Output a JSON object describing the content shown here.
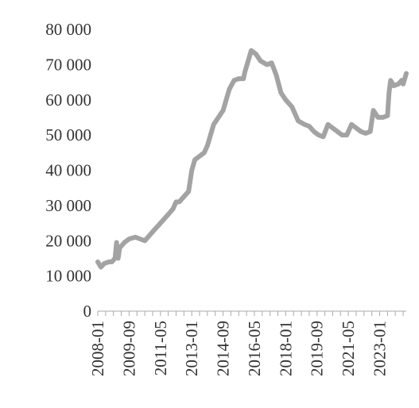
{
  "chart_data": {
    "type": "line",
    "title": "",
    "xlabel": "",
    "ylabel": "",
    "ylim": [
      0,
      80000
    ],
    "grid": false,
    "legend": "none",
    "x_start": "2008-01",
    "x_end": "2024-06",
    "yticks": [
      0,
      10000,
      20000,
      30000,
      40000,
      50000,
      60000,
      70000,
      80000
    ],
    "ytick_labels": [
      "0",
      "10 000",
      "20 000",
      "30 000",
      "40 000",
      "50 000",
      "60 000",
      "70 000",
      "80 000"
    ],
    "xtick_labels": [
      "2008-01",
      "2009-09",
      "2011-05",
      "2013-01",
      "2014-09",
      "2016-05",
      "2018-01",
      "2019-09",
      "2021-05",
      "2023-01"
    ],
    "series": [
      {
        "color": "#a3a3a3",
        "points": [
          [
            "2008-01",
            14000
          ],
          [
            "2008-03",
            12500
          ],
          [
            "2008-05",
            13500
          ],
          [
            "2008-08",
            14000
          ],
          [
            "2008-10",
            14000
          ],
          [
            "2008-12",
            15000
          ],
          [
            "2009-01",
            19500
          ],
          [
            "2009-02",
            15000
          ],
          [
            "2009-03",
            18000
          ],
          [
            "2009-06",
            19500
          ],
          [
            "2009-09",
            20500
          ],
          [
            "2010-01",
            21000
          ],
          [
            "2010-04",
            20500
          ],
          [
            "2010-07",
            20000
          ],
          [
            "2010-10",
            21500
          ],
          [
            "2011-01",
            23000
          ],
          [
            "2011-05",
            25000
          ],
          [
            "2011-09",
            27000
          ],
          [
            "2012-01",
            29000
          ],
          [
            "2012-03",
            31000
          ],
          [
            "2012-05",
            31000
          ],
          [
            "2012-08",
            32500
          ],
          [
            "2012-11",
            34000
          ],
          [
            "2013-01",
            40000
          ],
          [
            "2013-03",
            43000
          ],
          [
            "2013-06",
            44000
          ],
          [
            "2013-09",
            45000
          ],
          [
            "2013-11",
            47000
          ],
          [
            "2014-01",
            50000
          ],
          [
            "2014-03",
            53000
          ],
          [
            "2014-06",
            55000
          ],
          [
            "2014-09",
            57000
          ],
          [
            "2015-01",
            63000
          ],
          [
            "2015-04",
            65500
          ],
          [
            "2015-07",
            66000
          ],
          [
            "2015-10",
            66000
          ],
          [
            "2015-11",
            68000
          ],
          [
            "2016-01",
            71000
          ],
          [
            "2016-03",
            74000
          ],
          [
            "2016-06",
            73000
          ],
          [
            "2016-09",
            71000
          ],
          [
            "2017-01",
            70000
          ],
          [
            "2017-04",
            70500
          ],
          [
            "2017-07",
            67000
          ],
          [
            "2017-10",
            62000
          ],
          [
            "2018-01",
            60000
          ],
          [
            "2018-05",
            58000
          ],
          [
            "2018-09",
            54000
          ],
          [
            "2019-01",
            53000
          ],
          [
            "2019-04",
            52500
          ],
          [
            "2019-07",
            51000
          ],
          [
            "2019-10",
            50000
          ],
          [
            "2020-01",
            49500
          ],
          [
            "2020-04",
            53000
          ],
          [
            "2020-07",
            52000
          ],
          [
            "2020-10",
            51000
          ],
          [
            "2021-01",
            50000
          ],
          [
            "2021-04",
            50000
          ],
          [
            "2021-07",
            53000
          ],
          [
            "2021-10",
            52000
          ],
          [
            "2022-01",
            51000
          ],
          [
            "2022-04",
            50500
          ],
          [
            "2022-07",
            51000
          ],
          [
            "2022-09",
            57000
          ],
          [
            "2022-12",
            55000
          ],
          [
            "2023-03",
            55000
          ],
          [
            "2023-06",
            55500
          ],
          [
            "2023-07",
            62000
          ],
          [
            "2023-08",
            65500
          ],
          [
            "2023-10",
            64000
          ],
          [
            "2024-01",
            64500
          ],
          [
            "2024-03",
            65500
          ],
          [
            "2024-04",
            64500
          ],
          [
            "2024-06",
            67500
          ]
        ]
      }
    ]
  }
}
